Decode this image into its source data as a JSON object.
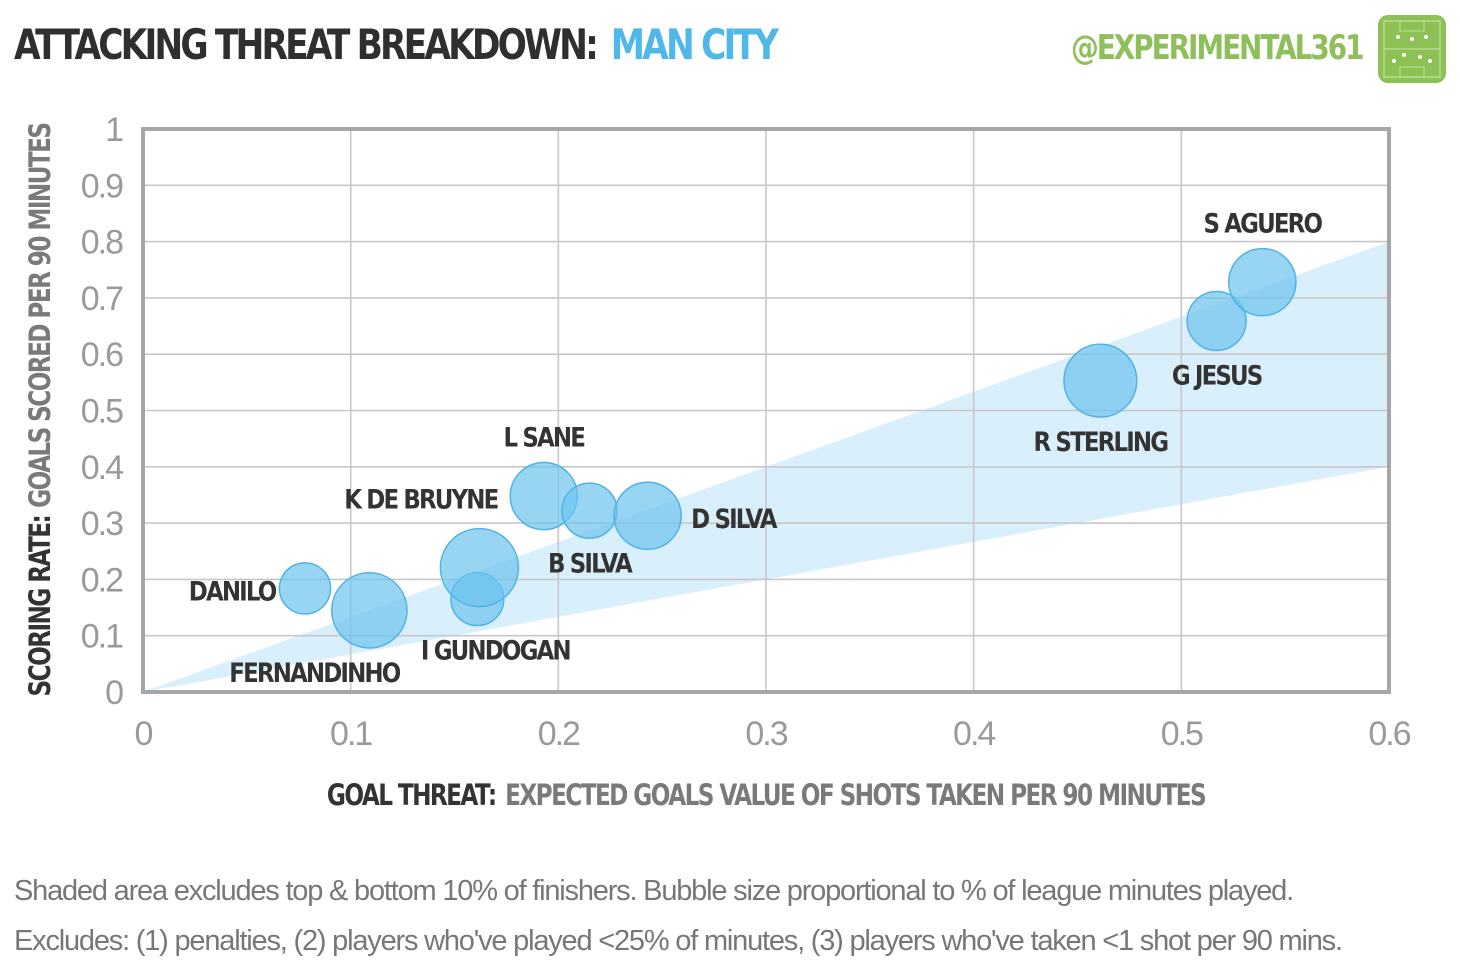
{
  "header": {
    "title": "ATTACKING THREAT BREAKDOWN:",
    "team": "MAN CITY",
    "handle": "@EXPERIMENTAL361",
    "logo_icon": "football-pitch-icon"
  },
  "footnotes": [
    "Shaded area excludes top & bottom 10% of finishers. Bubble size proportional to % of league minutes played.",
    "Excludes: (1) penalties, (2) players who've played <25% of minutes, (3) players who've taken <1 shot per 90 mins."
  ],
  "colors": {
    "title": "#2f2f2f",
    "team": "#4fb8e8",
    "handle": "#8dbf5a",
    "bubble_fill": "#6cc3ee",
    "bubble_stroke": "#4fb3e6",
    "band": "#d9effb",
    "grid": "#c8c8c8",
    "frame": "#a6a6a6",
    "tick": "#9a9a9a"
  },
  "chart_data": {
    "type": "scatter",
    "xlabel_bold": "GOAL THREAT:",
    "xlabel_rest": "EXPECTED GOALS VALUE OF SHOTS TAKEN PER 90 MINUTES",
    "ylabel_bold": "SCORING RATE:",
    "ylabel_rest": "GOALS SCORED PER 90 MINUTES",
    "xlim": [
      0,
      0.6
    ],
    "ylim": [
      0,
      1
    ],
    "x_ticks": [
      "0",
      "0.1",
      "0.2",
      "0.3",
      "0.4",
      "0.5",
      "0.6"
    ],
    "y_ticks": [
      "0",
      "0.1",
      "0.2",
      "0.3",
      "0.4",
      "0.5",
      "0.6",
      "0.7",
      "0.8",
      "0.9",
      "1"
    ],
    "grid": true,
    "band": {
      "upper_slope": 1.333,
      "lower_slope": 0.667
    },
    "points": [
      {
        "name": "DANILO",
        "x": 0.078,
        "y": 0.184,
        "size": 0.43,
        "label_pos": "left"
      },
      {
        "name": "FERNANDINHO",
        "x": 0.109,
        "y": 0.145,
        "size": 0.93,
        "label_pos": "below-left"
      },
      {
        "name": "I GUNDOGAN",
        "x": 0.161,
        "y": 0.165,
        "size": 0.46,
        "label_pos": "below-right"
      },
      {
        "name": "K DE BRUYNE",
        "x": 0.162,
        "y": 0.221,
        "size": 1.0,
        "label_pos": "above-left"
      },
      {
        "name": "L SANE",
        "x": 0.193,
        "y": 0.348,
        "size": 0.74,
        "label_pos": "above"
      },
      {
        "name": "B SILVA",
        "x": 0.215,
        "y": 0.322,
        "size": 0.5,
        "label_pos": "below"
      },
      {
        "name": "D SILVA",
        "x": 0.243,
        "y": 0.313,
        "size": 0.74,
        "label_pos": "right"
      },
      {
        "name": "R STERLING",
        "x": 0.461,
        "y": 0.553,
        "size": 0.87,
        "label_pos": "below"
      },
      {
        "name": "G JESUS",
        "x": 0.517,
        "y": 0.659,
        "size": 0.57,
        "label_pos": "below"
      },
      {
        "name": "S AGUERO",
        "x": 0.539,
        "y": 0.728,
        "size": 0.74,
        "label_pos": "above"
      }
    ]
  }
}
